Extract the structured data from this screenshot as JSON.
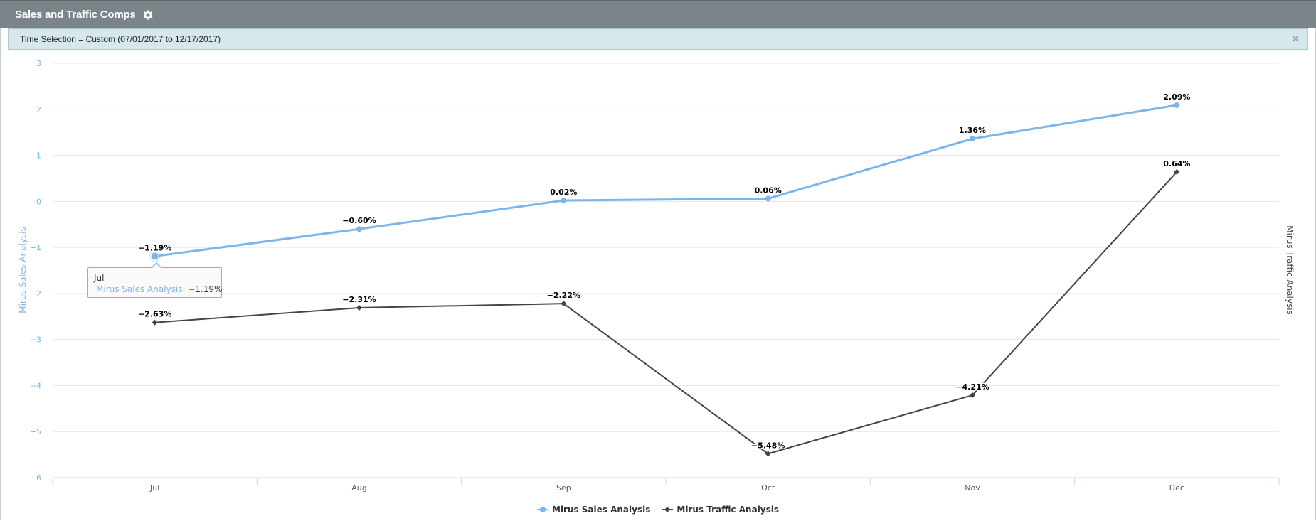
{
  "header": {
    "title": "Sales and Traffic Comps",
    "settings_icon": "gear-icon"
  },
  "filter": {
    "text": "Time Selection = Custom (07/01/2017 to 12/17/2017)",
    "close_icon": "close-icon",
    "close_glyph": "×"
  },
  "tooltip": {
    "category": "Jul",
    "series_label": "Mirus Sales Analysis:",
    "value": "−1.19%"
  },
  "colors": {
    "sales": "#7cb5ec",
    "traffic": "#434348",
    "axis_text": "#7cb5ec",
    "grid": "#e6e6e6"
  },
  "chart_data": {
    "type": "line",
    "categories": [
      "Jul",
      "Aug",
      "Sep",
      "Oct",
      "Nov",
      "Dec"
    ],
    "y_ticks": [
      3,
      2,
      1,
      0,
      -1,
      -2,
      -3,
      -4,
      -5,
      -6
    ],
    "y_tick_labels": [
      "3",
      "2",
      "1",
      "0",
      "−1",
      "−2",
      "−3",
      "−4",
      "−5",
      "−6"
    ],
    "ylim": [
      -6,
      3
    ],
    "ylabel": "Mirus Sales Analysis",
    "ylabel_right": "Mirus Traffic Analysis",
    "grid": true,
    "legend_position": "bottom-center",
    "series": [
      {
        "name": "Mirus Sales Analysis",
        "values": [
          -1.19,
          -0.6,
          0.02,
          0.06,
          1.36,
          2.09
        ],
        "labels": [
          "−1.19%",
          "−0.60%",
          "0.02%",
          "0.06%",
          "1.36%",
          "2.09%"
        ],
        "color": "#7cb5ec",
        "marker": "circle"
      },
      {
        "name": "Mirus Traffic Analysis",
        "values": [
          -2.63,
          -2.31,
          -2.22,
          -5.48,
          -4.21,
          0.64
        ],
        "labels": [
          "−2.63%",
          "−2.31%",
          "−2.22%",
          "−5.48%",
          "−4.21%",
          "0.64%"
        ],
        "color": "#434348",
        "marker": "diamond"
      }
    ]
  }
}
